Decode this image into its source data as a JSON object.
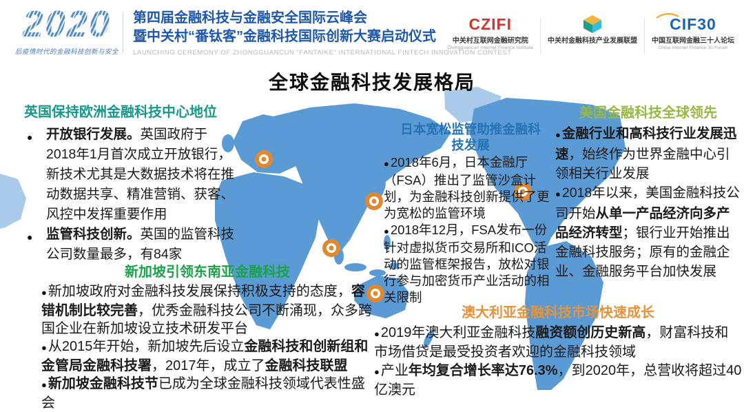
{
  "header": {
    "year_logo": "2020",
    "tagline": "后疫情时代的金融科技创新与安全",
    "title_line1": "第四届金融科技与金融安全国际云峰会",
    "title_line2": "暨中关村“番钛客”金融科技国际创新大赛启动仪式",
    "subtitle_en": "LAUNCHING CEREMONY OF ZHONGGUANCUN “FANTAIKE” INTERNATIONAL FINTECH INNOVATION CONTEST",
    "logos": [
      {
        "mark": "CZIFI",
        "zh": "中关村互联网金融研究院",
        "en": "Zhongguancun Internet Finance Institute"
      },
      {
        "mark": "",
        "zh": "中关村金融科技产业发展联盟",
        "en": ""
      },
      {
        "mark": "CIF30",
        "zh": "中国互联网金融三十人论坛",
        "en": "China Internet Finance 30 Forum"
      }
    ]
  },
  "page_title": "全球金融科技发展格局",
  "bullet_glyph": "●",
  "map": {
    "land_color": "#5b9bd5",
    "land_light_color": "#a9cbe9",
    "marker_color": "#e0882f",
    "marker_locations": [
      "europe",
      "east-asia",
      "southeast-asia",
      "australia",
      "north-america"
    ]
  },
  "regions": [
    {
      "id": "uk",
      "title": "英国保持欧洲金融科技中心地位",
      "color": "#18988b",
      "bullets": [
        {
          "segments": [
            {
              "t": "开放银行发展。",
              "b": true
            },
            {
              "t": "英国政府于2018年1月首次成立开放银行，新技术尤其是大数据技术将在推动数据共享、精准营销、获客、风控中发挥重要作用",
              "b": false
            }
          ]
        },
        {
          "segments": [
            {
              "t": "监管科技创新。",
              "b": true
            },
            {
              "t": "英国的监管科技公司数量最多，有84家",
              "b": false
            }
          ]
        }
      ]
    },
    {
      "id": "japan",
      "title": "日本宽松监管助推金融科技发展",
      "color": "#2572b4",
      "bullets": [
        {
          "segments": [
            {
              "t": "2018年6月，日本金融厅（FSA）推出了监管沙盒计划，为金融科技创新提供了更为宽松的监管环境",
              "b": false
            }
          ]
        },
        {
          "segments": [
            {
              "t": "2018年12月，FSA发布一份针对虚拟货币交易所和ICO活动的监管框架报告，放松对银行参与加密货币产业活动的相关限制",
              "b": false
            }
          ]
        }
      ]
    },
    {
      "id": "us",
      "title": "美国金融科技全球领先",
      "color": "#97b845",
      "bullets": [
        {
          "segments": [
            {
              "t": "金融行业和高科技行业发展迅速",
              "b": true
            },
            {
              "t": "，始终作为世界金融中心引领相关行业发展",
              "b": false
            }
          ]
        },
        {
          "segments": [
            {
              "t": "2018年以来，美国金融科技公司开始",
              "b": false
            },
            {
              "t": "从单一产品经济向多产品经济转型",
              "b": true
            },
            {
              "t": "；银行业开始推出金融科技服务；原有的金融企业、金融服务平台加快发展",
              "b": false
            }
          ]
        }
      ]
    },
    {
      "id": "sg",
      "title": "新加坡引领东南亚金融科技",
      "color": "#1ca24a",
      "bullets": [
        {
          "segments": [
            {
              "t": "新加坡政府对金融科技发展保持积极支持的态度，",
              "b": false
            },
            {
              "t": "容错机制比较完善",
              "b": true
            },
            {
              "t": "，优秀金融科技公司不断涌现，众多跨国企业在新加坡设立技术研发平台",
              "b": false
            }
          ]
        },
        {
          "segments": [
            {
              "t": "从2015年开始，新加坡先后设立",
              "b": false
            },
            {
              "t": "金融科技和创新组和金管局金融科技署",
              "b": true
            },
            {
              "t": "，2017年，成立了",
              "b": false
            },
            {
              "t": "金融科技联盟",
              "b": true
            }
          ]
        },
        {
          "segments": [
            {
              "t": "新加坡金融科技节",
              "b": true
            },
            {
              "t": "已成为全球金融科技领域代表性盛会",
              "b": false
            }
          ]
        }
      ]
    },
    {
      "id": "au",
      "title": "澳大利亚金融科技市场快速成长",
      "color": "#e6923a",
      "bullets": [
        {
          "segments": [
            {
              "t": "2019年澳大利亚金融科技",
              "b": false
            },
            {
              "t": "融资额创历史新高",
              "b": true
            },
            {
              "t": "，财富科技和市场借贷是最受投资者欢迎的金融科技领域",
              "b": false
            }
          ]
        },
        {
          "segments": [
            {
              "t": "产业",
              "b": false
            },
            {
              "t": "年均复合增长率达76.3%",
              "b": true
            },
            {
              "t": "，到2020年，总营收将超过40亿澳元",
              "b": false
            }
          ]
        }
      ]
    }
  ]
}
